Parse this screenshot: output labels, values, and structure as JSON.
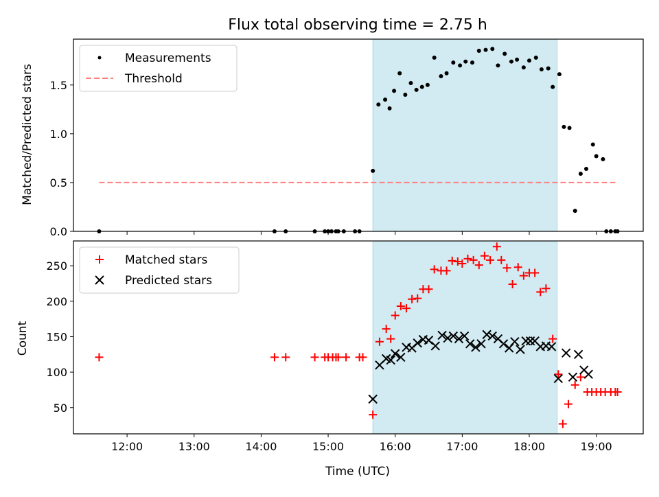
{
  "title": "Flux total observing time = 2.75 h",
  "colors": {
    "shade": "#add8e6",
    "threshold": "#ff7f7f",
    "matched": "#ff0000",
    "predicted": "#000000",
    "measurement": "#000000"
  },
  "chart_data": [
    {
      "type": "scatter",
      "ylabel": "Matched/Predicted stars",
      "xlabel": "",
      "xlim": [
        "11:12",
        "19:42"
      ],
      "ylim": [
        0,
        1.97
      ],
      "yticks": [
        0.0,
        0.5,
        1.0,
        1.5
      ],
      "ytick_labels": [
        "0.0",
        "0.5",
        "1.0",
        "1.5"
      ],
      "legend_position": "top-left",
      "shaded_region": {
        "from": "15:40",
        "to": "18:25"
      },
      "series": [
        {
          "name": "Measurements",
          "marker": "dot",
          "x": [
            "11:35",
            "14:12",
            "14:22",
            "14:48",
            "14:57",
            "15:00",
            "15:03",
            "15:07",
            "15:09",
            "15:14",
            "15:24",
            "15:28",
            "15:40",
            "15:45",
            "15:51",
            "15:55",
            "15:59",
            "16:04",
            "16:09",
            "16:14",
            "16:19",
            "16:24",
            "16:29",
            "16:35",
            "16:41",
            "16:46",
            "16:52",
            "16:58",
            "17:03",
            "17:09",
            "17:15",
            "17:21",
            "17:27",
            "17:32",
            "17:38",
            "17:44",
            "17:49",
            "17:55",
            "18:00",
            "18:06",
            "18:11",
            "18:17",
            "18:21",
            "18:27",
            "18:31",
            "18:36",
            "18:41",
            "18:46",
            "18:51",
            "18:57",
            "19:00",
            "19:06",
            "19:09",
            "19:13",
            "19:17",
            "19:19"
          ],
          "y": [
            0.0,
            0.0,
            0.0,
            0.0,
            0.0,
            0.0,
            0.0,
            0.0,
            0.0,
            0.0,
            0.0,
            0.0,
            0.62,
            1.3,
            1.35,
            1.26,
            1.44,
            1.62,
            1.4,
            1.52,
            1.45,
            1.48,
            1.5,
            1.78,
            1.59,
            1.62,
            1.73,
            1.7,
            1.74,
            1.73,
            1.85,
            1.86,
            1.87,
            1.7,
            1.82,
            1.74,
            1.76,
            1.68,
            1.75,
            1.78,
            1.66,
            1.67,
            1.48,
            1.61,
            1.07,
            1.06,
            0.21,
            0.59,
            0.64,
            0.89,
            0.77,
            0.74,
            0.0,
            0.0,
            0.0,
            0.0
          ]
        },
        {
          "name": "Threshold",
          "marker": "dashed-line",
          "x": [
            "11:35",
            "19:19"
          ],
          "y": [
            0.5,
            0.5
          ]
        }
      ]
    },
    {
      "type": "scatter",
      "ylabel": "Count",
      "xlabel": "Time (UTC)",
      "xlim": [
        "11:12",
        "19:42"
      ],
      "ylim": [
        13,
        285
      ],
      "yticks": [
        50,
        100,
        150,
        200,
        250
      ],
      "xtick_labels": [
        "12:00",
        "13:00",
        "14:00",
        "15:00",
        "16:00",
        "17:00",
        "18:00",
        "19:00"
      ],
      "legend_position": "top-left",
      "shaded_region": {
        "from": "15:40",
        "to": "18:25"
      },
      "series": [
        {
          "name": "Matched stars",
          "marker": "plus",
          "x": [
            "11:35",
            "14:12",
            "14:22",
            "14:48",
            "14:57",
            "15:00",
            "15:04",
            "15:07",
            "15:09",
            "15:16",
            "15:28",
            "15:31",
            "15:40",
            "15:46",
            "15:52",
            "15:56",
            "16:00",
            "16:05",
            "16:10",
            "16:15",
            "16:20",
            "16:25",
            "16:30",
            "16:35",
            "16:41",
            "16:46",
            "16:51",
            "16:56",
            "17:00",
            "17:05",
            "17:10",
            "17:15",
            "17:20",
            "17:25",
            "17:31",
            "17:35",
            "17:40",
            "17:45",
            "17:50",
            "17:55",
            "18:00",
            "18:05",
            "18:10",
            "18:15",
            "18:21",
            "18:26",
            "18:30",
            "18:35",
            "18:41",
            "18:46",
            "18:52",
            "18:56",
            "19:00",
            "19:04",
            "19:08",
            "19:13",
            "19:17",
            "19:19"
          ],
          "y": [
            121,
            121,
            121,
            121,
            121,
            121,
            121,
            121,
            121,
            121,
            121,
            121,
            40,
            143,
            161,
            147,
            180,
            193,
            190,
            203,
            204,
            217,
            217,
            245,
            243,
            243,
            257,
            256,
            253,
            260,
            258,
            251,
            264,
            258,
            277,
            258,
            247,
            224,
            248,
            236,
            240,
            240,
            213,
            218,
            147,
            97,
            27,
            55,
            82,
            93,
            72,
            72,
            72,
            72,
            72,
            72,
            72,
            72
          ]
        },
        {
          "name": "Predicted stars",
          "marker": "x",
          "x": [
            "15:40",
            "15:46",
            "15:52",
            "15:56",
            "16:00",
            "16:05",
            "16:10",
            "16:15",
            "16:20",
            "16:25",
            "16:30",
            "16:36",
            "16:42",
            "16:47",
            "16:52",
            "16:57",
            "17:02",
            "17:07",
            "17:12",
            "17:17",
            "17:22",
            "17:27",
            "17:32",
            "17:37",
            "17:42",
            "17:47",
            "17:52",
            "17:57",
            "18:01",
            "18:05",
            "18:10",
            "18:15",
            "18:20",
            "18:26",
            "18:33",
            "18:39",
            "18:44",
            "18:49",
            "18:53"
          ],
          "y": [
            62,
            110,
            119,
            117,
            126,
            121,
            135,
            134,
            141,
            146,
            145,
            137,
            152,
            148,
            151,
            147,
            151,
            140,
            135,
            140,
            153,
            151,
            147,
            140,
            134,
            143,
            132,
            144,
            144,
            144,
            136,
            137,
            136,
            91,
            127,
            93,
            125,
            103,
            97
          ]
        }
      ]
    }
  ]
}
